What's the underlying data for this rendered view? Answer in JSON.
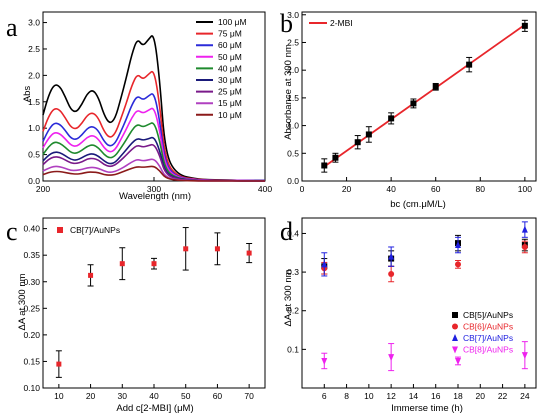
{
  "chart_data": [
    {
      "type": "line",
      "panel_label": "a",
      "xlabel": "Wavelength (nm)",
      "ylabel": "Abs",
      "xlim": [
        200,
        400
      ],
      "ylim": [
        0,
        3.2
      ],
      "xticks": [
        "200",
        "300",
        "400"
      ],
      "yticks": [
        "0.0",
        "0.5",
        "1.0",
        "1.5",
        "2.0",
        "2.5",
        "3.0"
      ],
      "legend_position": "top-right",
      "series": [
        {
          "name": "100 μM",
          "color": "#000000",
          "peaks": [
            1.83,
            1.73,
            2.8
          ],
          "x": [
            200,
            205,
            210,
            215,
            220,
            225,
            230,
            235,
            240,
            245,
            250,
            255,
            260,
            265,
            270,
            275,
            280,
            285,
            290,
            295,
            300,
            305,
            310,
            320,
            340,
            360,
            380,
            400
          ],
          "values": [
            1.25,
            1.62,
            1.83,
            1.8,
            1.6,
            1.35,
            1.3,
            1.45,
            1.66,
            1.73,
            1.58,
            1.25,
            1.08,
            1.18,
            1.55,
            1.95,
            2.4,
            2.7,
            2.55,
            2.68,
            2.8,
            1.95,
            0.55,
            0.12,
            0.03,
            0.02,
            0.01,
            0.01
          ]
        },
        {
          "name": "75 μM",
          "color": "#e8262b",
          "peaks": [
            1.38,
            1.3,
            2.11
          ],
          "x": [
            200,
            205,
            210,
            215,
            220,
            225,
            230,
            235,
            240,
            245,
            250,
            255,
            260,
            265,
            270,
            275,
            280,
            285,
            290,
            295,
            300,
            305,
            310,
            320,
            340,
            360,
            380,
            400
          ],
          "values": [
            0.94,
            1.22,
            1.38,
            1.35,
            1.2,
            1.02,
            0.98,
            1.09,
            1.25,
            1.3,
            1.19,
            0.94,
            0.81,
            0.89,
            1.17,
            1.47,
            1.81,
            2.03,
            1.92,
            2.02,
            2.11,
            1.47,
            0.41,
            0.09,
            0.02,
            0.02,
            0.01,
            0.01
          ]
        },
        {
          "name": "60 μM",
          "color": "#2b2bd9",
          "peaks": [
            1.1,
            1.04,
            1.68
          ],
          "x": [
            200,
            205,
            210,
            215,
            220,
            225,
            230,
            235,
            240,
            245,
            250,
            255,
            260,
            265,
            270,
            275,
            280,
            285,
            290,
            295,
            300,
            305,
            310,
            320,
            340,
            360,
            380,
            400
          ],
          "values": [
            0.75,
            0.97,
            1.1,
            1.08,
            0.96,
            0.81,
            0.78,
            0.87,
            1.0,
            1.04,
            0.95,
            0.75,
            0.65,
            0.71,
            0.93,
            1.17,
            1.44,
            1.62,
            1.53,
            1.61,
            1.68,
            1.17,
            0.33,
            0.07,
            0.02,
            0.01,
            0.01,
            0.01
          ]
        },
        {
          "name": "50 μM",
          "color": "#ee22ee",
          "peaks": [
            0.92,
            0.87,
            1.4
          ],
          "x": [
            200,
            205,
            210,
            215,
            220,
            225,
            230,
            235,
            240,
            245,
            250,
            255,
            260,
            265,
            270,
            275,
            280,
            285,
            290,
            295,
            300,
            305,
            310,
            320,
            340,
            360,
            380,
            400
          ],
          "values": [
            0.63,
            0.81,
            0.92,
            0.9,
            0.8,
            0.68,
            0.65,
            0.73,
            0.83,
            0.87,
            0.79,
            0.63,
            0.54,
            0.59,
            0.78,
            0.98,
            1.2,
            1.35,
            1.28,
            1.34,
            1.4,
            0.98,
            0.28,
            0.06,
            0.02,
            0.01,
            0.01,
            0.0
          ]
        },
        {
          "name": "40 μM",
          "color": "#1f8a2e",
          "peaks": [
            0.74,
            0.69,
            1.12
          ],
          "x": [
            200,
            205,
            210,
            215,
            220,
            225,
            230,
            235,
            240,
            245,
            250,
            255,
            260,
            265,
            270,
            275,
            280,
            285,
            290,
            295,
            300,
            305,
            310,
            320,
            340,
            360,
            380,
            400
          ],
          "values": [
            0.5,
            0.65,
            0.74,
            0.72,
            0.64,
            0.54,
            0.52,
            0.58,
            0.66,
            0.69,
            0.63,
            0.5,
            0.43,
            0.47,
            0.62,
            0.78,
            0.96,
            1.08,
            1.02,
            1.07,
            1.12,
            0.78,
            0.22,
            0.05,
            0.01,
            0.01,
            0.0,
            0.0
          ]
        },
        {
          "name": "30 μM",
          "color": "#1a1a7a",
          "peaks": [
            0.55,
            0.52,
            0.84
          ],
          "x": [
            200,
            205,
            210,
            215,
            220,
            225,
            230,
            235,
            240,
            245,
            250,
            255,
            260,
            265,
            270,
            275,
            280,
            285,
            290,
            295,
            300,
            305,
            310,
            320,
            340,
            360,
            380,
            400
          ],
          "values": [
            0.38,
            0.49,
            0.55,
            0.54,
            0.48,
            0.41,
            0.39,
            0.44,
            0.5,
            0.52,
            0.47,
            0.38,
            0.32,
            0.35,
            0.47,
            0.59,
            0.72,
            0.81,
            0.77,
            0.8,
            0.84,
            0.59,
            0.17,
            0.04,
            0.01,
            0.01,
            0.0,
            0.0
          ]
        },
        {
          "name": "25 μM",
          "color": "#7a1a8a",
          "peaks": [
            0.46,
            0.43,
            0.7
          ],
          "x": [
            200,
            205,
            210,
            215,
            220,
            225,
            230,
            235,
            240,
            245,
            250,
            255,
            260,
            265,
            270,
            275,
            280,
            285,
            290,
            295,
            300,
            305,
            310,
            320,
            340,
            360,
            380,
            400
          ],
          "values": [
            0.31,
            0.41,
            0.46,
            0.45,
            0.4,
            0.34,
            0.33,
            0.36,
            0.42,
            0.43,
            0.4,
            0.31,
            0.27,
            0.3,
            0.39,
            0.49,
            0.6,
            0.68,
            0.64,
            0.67,
            0.7,
            0.49,
            0.14,
            0.03,
            0.01,
            0.01,
            0.0,
            0.0
          ]
        },
        {
          "name": "15 μM",
          "color": "#b040c0",
          "peaks": [
            0.28,
            0.26,
            0.42
          ],
          "x": [
            200,
            205,
            210,
            215,
            220,
            225,
            230,
            235,
            240,
            245,
            250,
            255,
            260,
            265,
            270,
            275,
            280,
            285,
            290,
            295,
            300,
            305,
            310,
            320,
            340,
            360,
            380,
            400
          ],
          "values": [
            0.19,
            0.24,
            0.28,
            0.27,
            0.24,
            0.2,
            0.2,
            0.22,
            0.25,
            0.26,
            0.24,
            0.19,
            0.16,
            0.18,
            0.23,
            0.29,
            0.36,
            0.41,
            0.38,
            0.4,
            0.42,
            0.29,
            0.08,
            0.02,
            0.0,
            0.0,
            0.0,
            0.0
          ]
        },
        {
          "name": "10 μM",
          "color": "#8b1a1a",
          "peaks": [
            0.18,
            0.17,
            0.28
          ],
          "x": [
            200,
            205,
            210,
            215,
            220,
            225,
            230,
            235,
            240,
            245,
            250,
            255,
            260,
            265,
            270,
            275,
            280,
            285,
            290,
            295,
            300,
            305,
            310,
            320,
            340,
            360,
            380,
            400
          ],
          "values": [
            0.12,
            0.16,
            0.18,
            0.18,
            0.16,
            0.14,
            0.13,
            0.14,
            0.17,
            0.17,
            0.16,
            0.12,
            0.11,
            0.12,
            0.16,
            0.2,
            0.24,
            0.27,
            0.26,
            0.27,
            0.28,
            0.2,
            0.06,
            0.01,
            0.0,
            0.0,
            0.0,
            0.0
          ]
        }
      ]
    },
    {
      "type": "scatter",
      "panel_label": "b",
      "xlabel": "bc (cm.μM/L)",
      "ylabel": "Absorbance at 300 nm",
      "xlim": [
        0,
        105
      ],
      "ylim": [
        0,
        3.05
      ],
      "xticks": [
        "0",
        "20",
        "40",
        "60",
        "80",
        "100"
      ],
      "yticks": [
        "0.0",
        "0.5",
        "1.0",
        "1.5",
        "2.0",
        "2.5",
        "3.0"
      ],
      "legend_position": "top-left",
      "series": [
        {
          "name": "2-MBI",
          "color": "#e8262b",
          "fit_line": [
            [
              10,
              0.26
            ],
            [
              100,
              2.82
            ]
          ],
          "x": [
            10,
            15,
            25,
            30,
            40,
            50,
            60,
            75,
            100
          ],
          "values": [
            0.28,
            0.42,
            0.7,
            0.84,
            1.13,
            1.4,
            1.7,
            2.1,
            2.8
          ],
          "errors": [
            0.12,
            0.08,
            0.12,
            0.14,
            0.1,
            0.08,
            0.06,
            0.13,
            0.1
          ]
        }
      ]
    },
    {
      "type": "scatter",
      "panel_label": "c",
      "xlabel": "Add c[2-MBI] (μM)",
      "ylabel": "ΔA at 300 nm",
      "xlim": [
        5,
        75
      ],
      "ylim": [
        0.1,
        0.42
      ],
      "xticks": [
        "10",
        "20",
        "30",
        "40",
        "50",
        "60",
        "70"
      ],
      "yticks": [
        "0.10",
        "0.15",
        "0.20",
        "0.25",
        "0.30",
        "0.35",
        "0.40"
      ],
      "legend_position": "top-left",
      "series": [
        {
          "name": "CB[7]/AuNPs",
          "color": "#e8262b",
          "marker": "square-legend",
          "x": [
            10,
            20,
            30,
            40,
            50,
            60,
            70
          ],
          "values": [
            0.145,
            0.312,
            0.334,
            0.334,
            0.362,
            0.362,
            0.354
          ],
          "errors": [
            0.025,
            0.02,
            0.03,
            0.01,
            0.04,
            0.03,
            0.018
          ]
        }
      ]
    },
    {
      "type": "scatter",
      "panel_label": "d",
      "xlabel": "Immerse time (h)",
      "ylabel": "ΔA at 300 nm",
      "xlim": [
        4,
        25
      ],
      "ylim": [
        0.0,
        0.44
      ],
      "xticks": [
        "6",
        "8",
        "10",
        "12",
        "14",
        "16",
        "18",
        "20",
        "22",
        "24"
      ],
      "yticks": [
        "0.1",
        "0.2",
        "0.3",
        "0.4"
      ],
      "legend_position": "bottom-right",
      "series": [
        {
          "name": "CB[5]/AuNPs",
          "color": "#000000",
          "marker": "square",
          "x": [
            6,
            12,
            18,
            24
          ],
          "values": [
            0.315,
            0.335,
            0.375,
            0.37
          ],
          "errors": [
            0.02,
            0.02,
            0.02,
            0.015
          ]
        },
        {
          "name": "CB[6]/AuNPs",
          "color": "#e8262b",
          "marker": "circle",
          "x": [
            6,
            12,
            18,
            24
          ],
          "values": [
            0.31,
            0.295,
            0.32,
            0.365
          ],
          "errors": [
            0.015,
            0.02,
            0.01,
            0.015
          ]
        },
        {
          "name": "CB[7]/AuNPs",
          "color": "#2020e0",
          "marker": "triangle-up",
          "x": [
            6,
            12,
            18,
            24
          ],
          "values": [
            0.32,
            0.34,
            0.37,
            0.41
          ],
          "errors": [
            0.03,
            0.025,
            0.02,
            0.02
          ]
        },
        {
          "name": "CB[8]/AuNPs",
          "color": "#ee22ee",
          "marker": "triangle-down",
          "x": [
            6,
            12,
            18,
            24
          ],
          "values": [
            0.07,
            0.08,
            0.07,
            0.085
          ],
          "errors": [
            0.02,
            0.035,
            0.01,
            0.035
          ]
        }
      ]
    }
  ]
}
